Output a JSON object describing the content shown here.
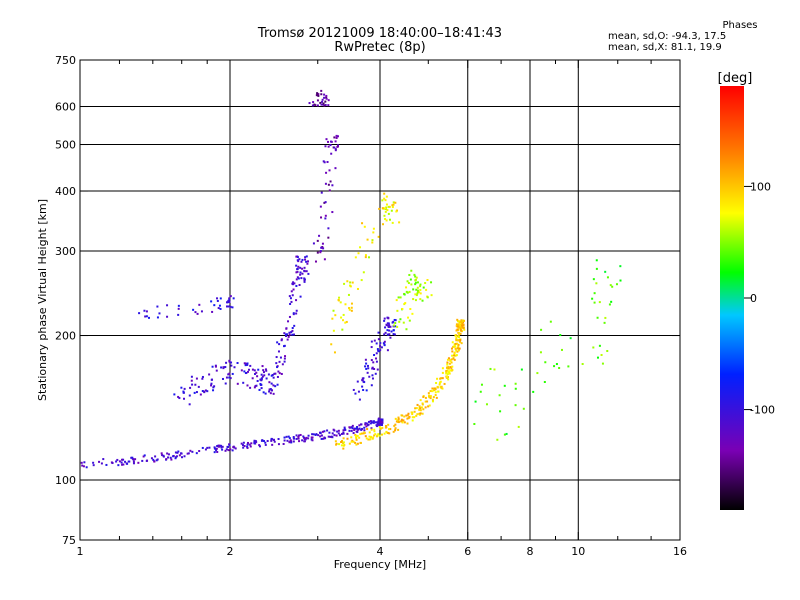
{
  "chart_data": {
    "type": "scatter",
    "title": "Tromsø 20121009 18:40:00–18:41:43",
    "subtitle": "RwPretec (8p)",
    "xlabel": "Frequency [MHz]",
    "ylabel": "Stationary phase Virtual Height [km]",
    "x_scale": "log",
    "y_scale": "log",
    "xlim": [
      1,
      16
    ],
    "ylim": [
      75,
      750
    ],
    "x_ticks": [
      1,
      2,
      4,
      6,
      8,
      10,
      16
    ],
    "x_tick_labels": [
      "1",
      "2",
      "4",
      "6",
      "8",
      "10",
      "16"
    ],
    "x_minor_ticks": [
      1.2,
      1.4,
      1.6,
      1.8,
      3,
      5,
      7,
      9,
      12,
      14
    ],
    "x_grid": [
      2,
      4,
      6,
      8,
      10
    ],
    "y_ticks": [
      75,
      100,
      200,
      300,
      400,
      500,
      600,
      750
    ],
    "y_tick_labels": [
      "75",
      "100",
      "200",
      "300",
      "400",
      "500",
      "600",
      "750"
    ],
    "y_grid": [
      100,
      200,
      300,
      400,
      500,
      600
    ],
    "grid": true,
    "colorbar": {
      "label": "[deg]",
      "range": [
        -190,
        190
      ],
      "ticks": [
        -100,
        0,
        100
      ],
      "tick_labels": [
        "-100",
        "0",
        "100"
      ]
    },
    "phase_stats": {
      "header": "Phases",
      "o_line": "mean, sd,O: -94.3, 17.5",
      "x_line": "mean, sd,X:  81.1, 19.9"
    },
    "traces": [
      {
        "f": [
          1.0,
          1.3,
          1.6,
          2.0,
          2.4,
          2.8,
          3.2,
          3.6,
          4.0
        ],
        "h": [
          108,
          110,
          113,
          117,
          120,
          122,
          125,
          128,
          132
        ],
        "phase": -110,
        "spread": 0.012,
        "n": 34
      },
      {
        "f": [
          3.3,
          3.8,
          4.3,
          4.8,
          5.2,
          5.5,
          5.7,
          5.8
        ],
        "h": [
          118,
          124,
          130,
          140,
          155,
          170,
          190,
          210
        ],
        "phase": 95,
        "spread": 0.018,
        "n": 40
      },
      {
        "f": [
          1.6,
          1.8,
          2.0,
          2.2,
          2.4
        ],
        "h": [
          150,
          160,
          170,
          165,
          160
        ],
        "phase": -105,
        "spread": 0.04,
        "n": 25
      },
      {
        "f": [
          2.5,
          2.6,
          2.7,
          2.8
        ],
        "h": [
          170,
          200,
          240,
          280
        ],
        "phase": -110,
        "spread": 0.03,
        "n": 24
      },
      {
        "f": [
          3.0,
          3.1,
          3.2
        ],
        "h": [
          280,
          350,
          500
        ],
        "phase": -130,
        "spread": 0.03,
        "n": 18
      },
      {
        "f": [
          2.9,
          3.0,
          3.1
        ],
        "h": [
          600,
          630,
          620
        ],
        "phase": -140,
        "spread": 0.02,
        "n": 10
      },
      {
        "f": [
          3.6,
          3.8,
          4.0,
          4.2
        ],
        "h": [
          150,
          170,
          190,
          210
        ],
        "phase": -100,
        "spread": 0.03,
        "n": 22
      },
      {
        "f": [
          4.3,
          4.5,
          4.7,
          4.9
        ],
        "h": [
          200,
          230,
          260,
          250
        ],
        "phase": 60,
        "spread": 0.04,
        "n": 16
      },
      {
        "f": [
          3.2,
          3.4,
          3.6,
          4.0,
          4.2
        ],
        "h": [
          190,
          230,
          260,
          380,
          360
        ],
        "phase": 80,
        "spread": 0.04,
        "n": 16
      },
      {
        "f": [
          1.3,
          1.5,
          1.8,
          2.0
        ],
        "h": [
          220,
          225,
          230,
          235
        ],
        "phase": -100,
        "spread": 0.02,
        "n": 10
      },
      {
        "f": [
          6.2,
          7.3,
          8.5,
          11.0,
          11.5
        ],
        "h": [
          160,
          130,
          200,
          170,
          260
        ],
        "phase": 40,
        "spread": 0.08,
        "n": 12
      }
    ]
  }
}
